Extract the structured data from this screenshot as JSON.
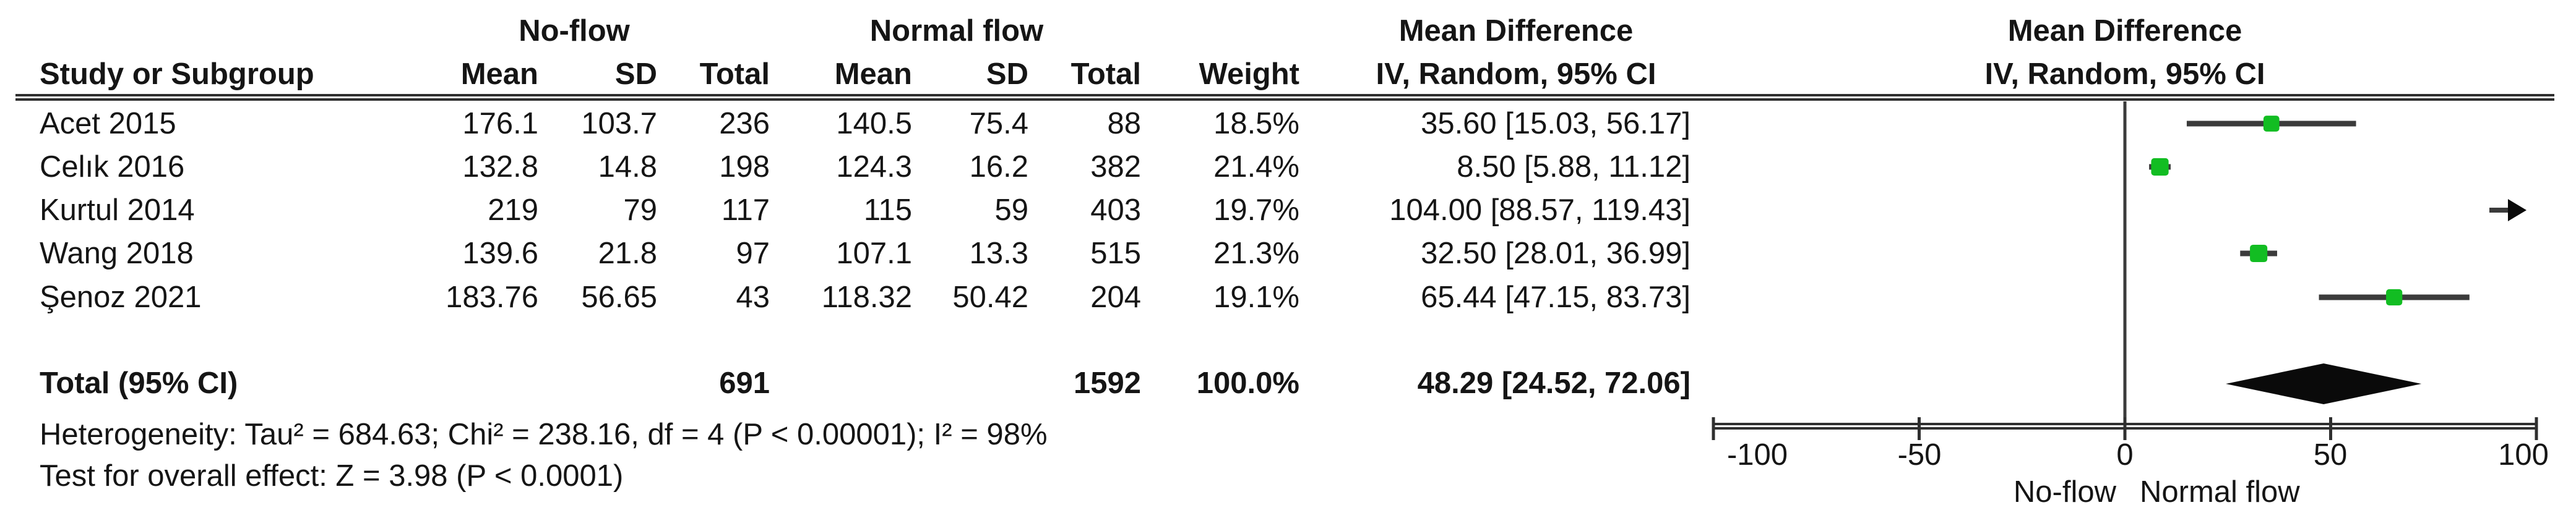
{
  "headers": {
    "study": "Study or Subgroup",
    "group1": "No-flow",
    "group2": "Normal flow",
    "mean": "Mean",
    "sd": "SD",
    "total": "Total",
    "weight": "Weight",
    "effect_line1": "Mean Difference",
    "effect_line2": "IV, Random, 95% CI"
  },
  "footer": {
    "heterogeneity": "Heterogeneity: Tau² = 684.63; Chi² = 238.16, df = 4 (P < 0.00001); I² = 98%",
    "overall_test": "Test for overall effect: Z = 3.98 (P < 0.0001)"
  },
  "colors": {
    "marker_green": "#12bd22",
    "line_dark": "#3b3b3b",
    "rule_dark": "#2f2f2f",
    "diamond_black": "#0a0a0a"
  },
  "chart_data": {
    "type": "forest",
    "title": "Mean Difference",
    "subtitle": "IV, Random, 95% CI",
    "x_axis": {
      "min": -100,
      "max": 100,
      "ticks": [
        -100,
        -50,
        0,
        50,
        100
      ],
      "tick_labels": [
        "-100",
        "-50",
        "0",
        "50",
        "100"
      ],
      "left_caption": "No-flow",
      "right_caption": "Normal flow"
    },
    "studies": [
      {
        "name": "Acet 2015",
        "mean1": "176.1",
        "sd1": "103.7",
        "n1": "236",
        "mean2": "140.5",
        "sd2": "75.4",
        "n2": "88",
        "weight": "18.5%",
        "ci_text": "35.60 [15.03, 56.17]",
        "est": 35.6,
        "lo": 15.03,
        "hi": 56.17
      },
      {
        "name": "Celık 2016",
        "mean1": "132.8",
        "sd1": "14.8",
        "n1": "198",
        "mean2": "124.3",
        "sd2": "16.2",
        "n2": "382",
        "weight": "21.4%",
        "ci_text": "8.50 [5.88, 11.12]",
        "est": 8.5,
        "lo": 5.88,
        "hi": 11.12
      },
      {
        "name": "Kurtul 2014",
        "mean1": "219",
        "sd1": "79",
        "n1": "117",
        "mean2": "115",
        "sd2": "59",
        "n2": "403",
        "weight": "19.7%",
        "ci_text": "104.00 [88.57, 119.43]",
        "est": 104.0,
        "lo": 88.57,
        "hi": 119.43
      },
      {
        "name": "Wang 2018",
        "mean1": "139.6",
        "sd1": "21.8",
        "n1": "97",
        "mean2": "107.1",
        "sd2": "13.3",
        "n2": "515",
        "weight": "21.3%",
        "ci_text": "32.50 [28.01, 36.99]",
        "est": 32.5,
        "lo": 28.01,
        "hi": 36.99
      },
      {
        "name": "Şenoz 2021",
        "mean1": "183.76",
        "sd1": "56.65",
        "n1": "43",
        "mean2": "118.32",
        "sd2": "50.42",
        "n2": "204",
        "weight": "19.1%",
        "ci_text": "65.44 [47.15, 83.73]",
        "est": 65.44,
        "lo": 47.15,
        "hi": 83.73
      }
    ],
    "total": {
      "label": "Total (95% CI)",
      "n1": "691",
      "n2": "1592",
      "weight": "100.0%",
      "ci_text": "48.29 [24.52, 72.06]",
      "est": 48.29,
      "lo": 24.52,
      "hi": 72.06
    }
  }
}
